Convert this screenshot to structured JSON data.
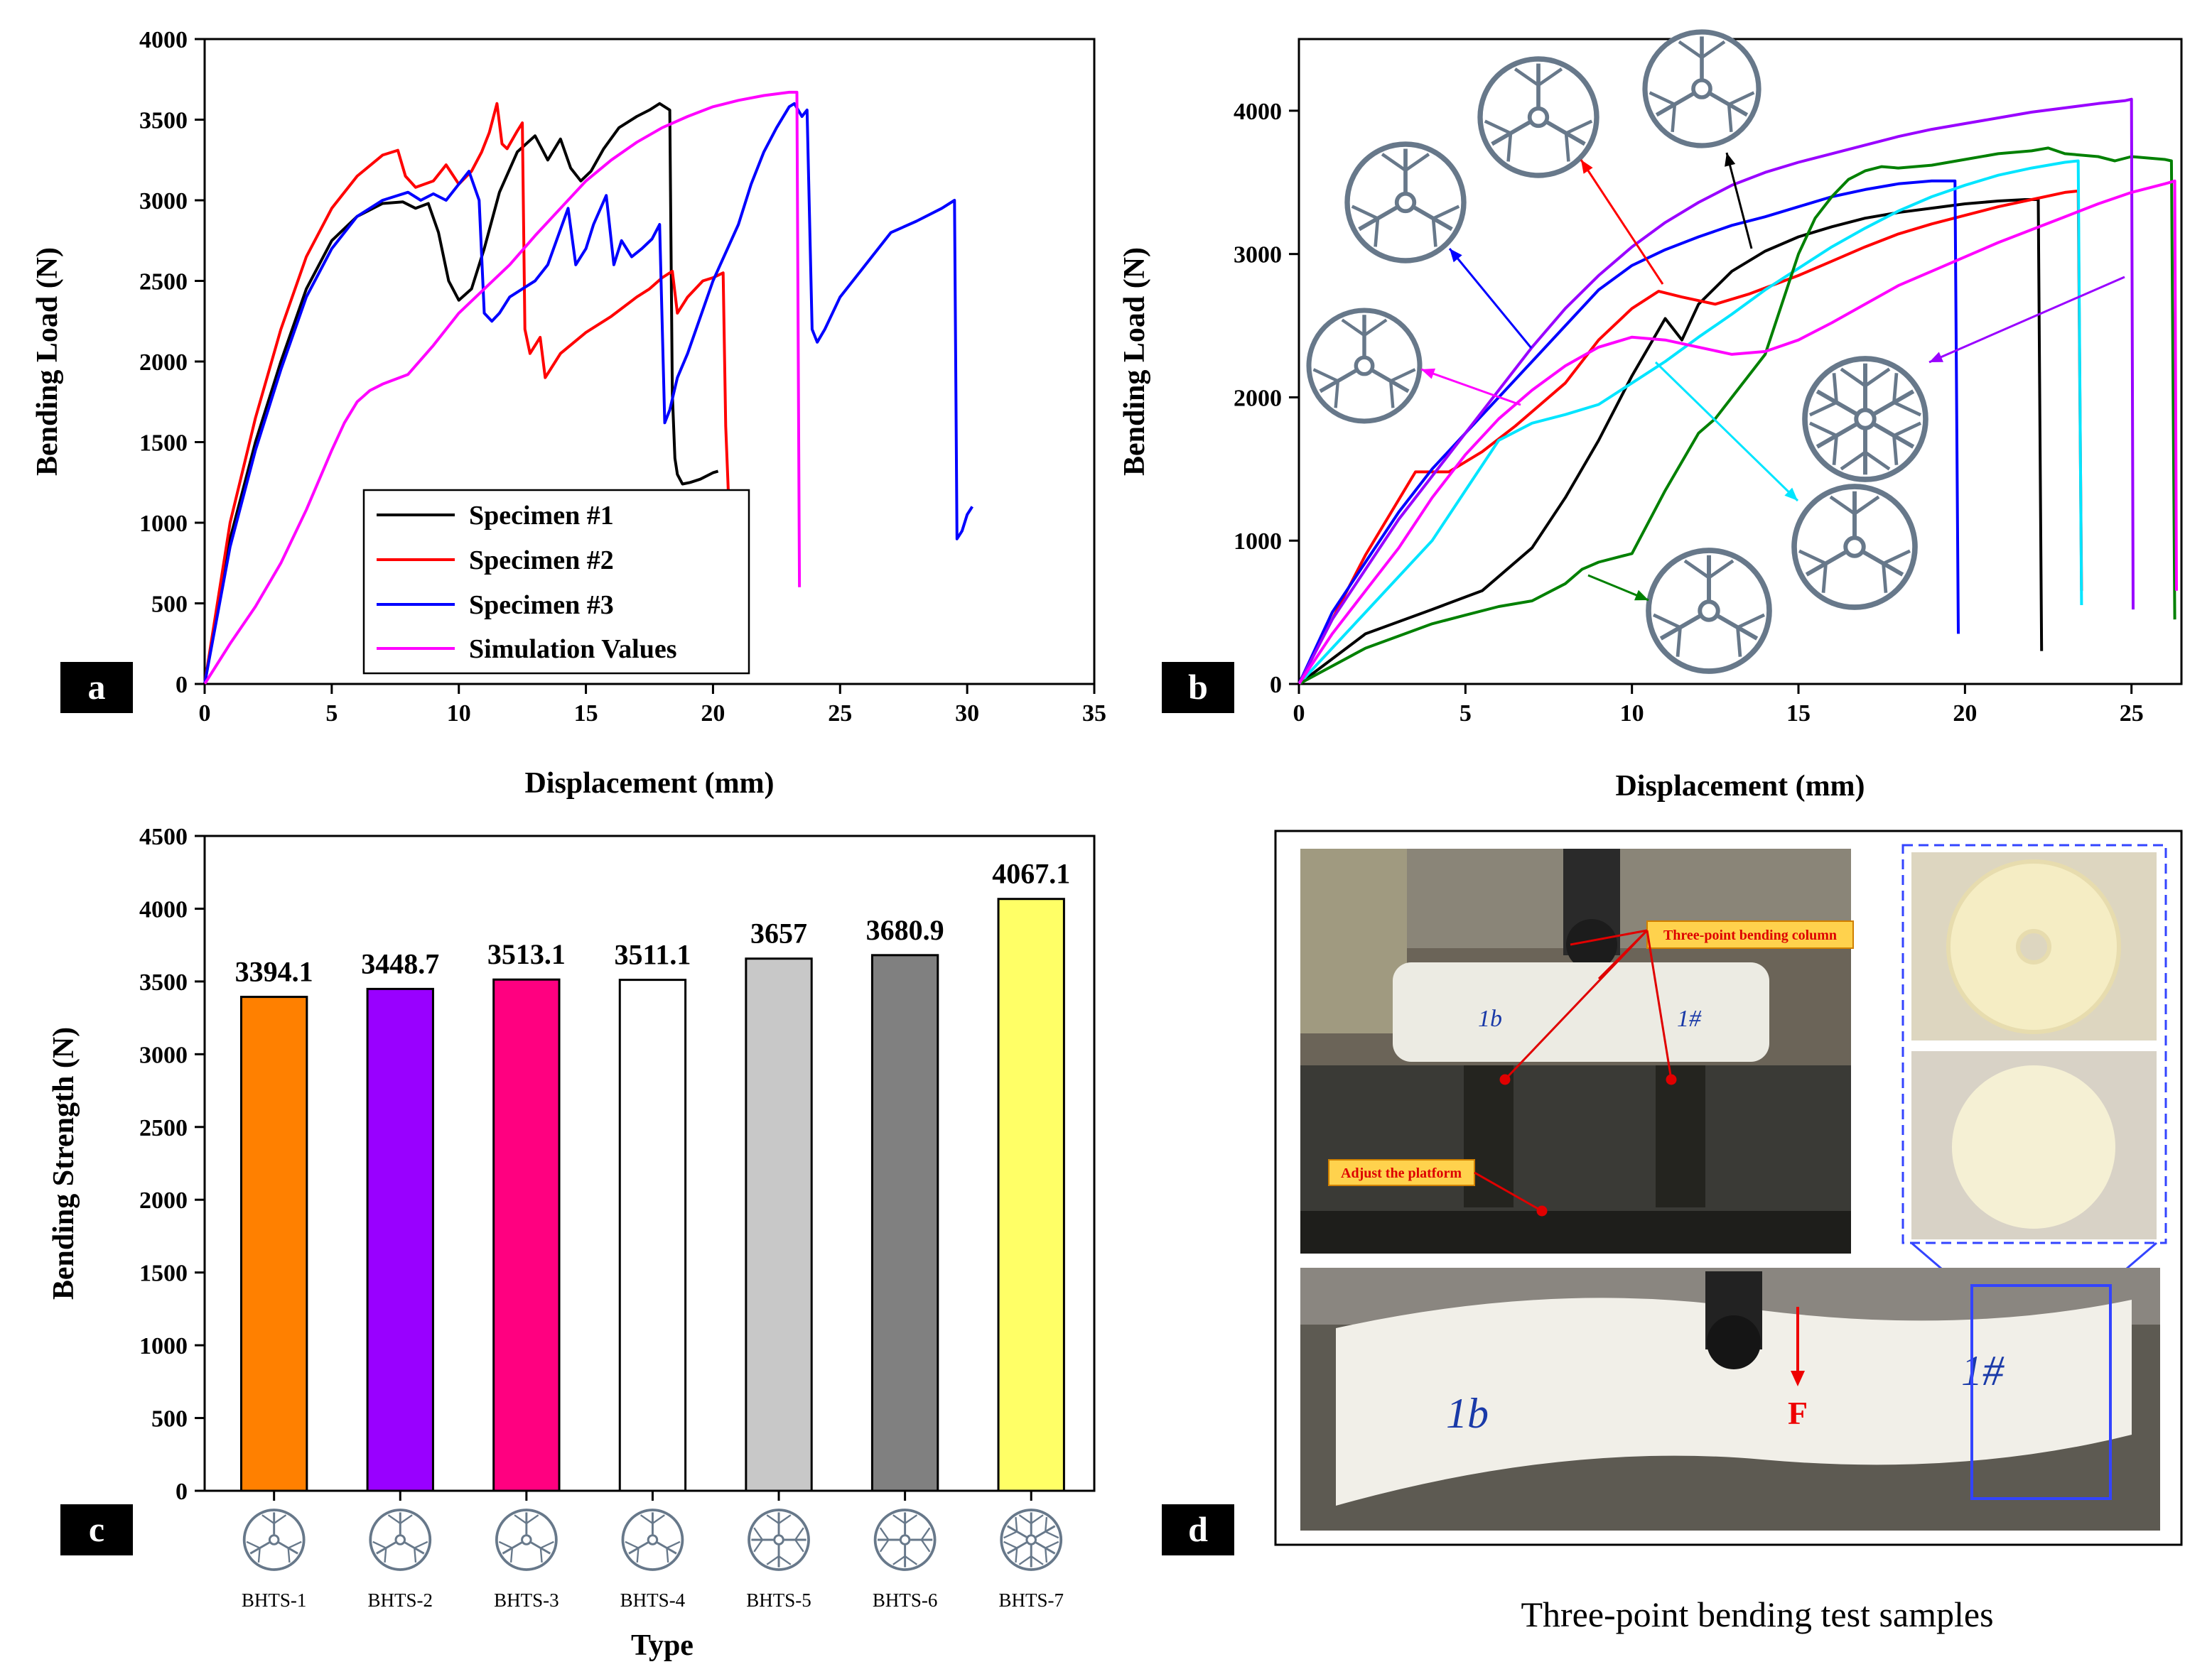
{
  "chart_data": [
    {
      "id": "a",
      "type": "line",
      "panel_label": "a",
      "xlabel": "Displacement (mm)",
      "ylabel": "Bending Load (N)",
      "xlim": [
        0,
        35
      ],
      "ylim": [
        0,
        4000
      ],
      "xticks": [
        0,
        5,
        10,
        15,
        20,
        25,
        30,
        35
      ],
      "yticks": [
        0,
        500,
        1000,
        1500,
        2000,
        2500,
        3000,
        3500,
        4000
      ],
      "legend_position": "bottom-center",
      "series": [
        {
          "name": "Specimen #1",
          "color": "#000000",
          "x": [
            0,
            1,
            2,
            3,
            4,
            5,
            6,
            7,
            7.8,
            8.3,
            8.8,
            9.2,
            9.6,
            10,
            10.5,
            11,
            11.6,
            12.3,
            13,
            13.5,
            14,
            14.4,
            14.8,
            15.2,
            15.7,
            16.3,
            17,
            17.5,
            17.9,
            18.3,
            18.4,
            18.5,
            18.6,
            18.8,
            19.1,
            19.5,
            20,
            20.2
          ],
          "y": [
            0,
            900,
            1500,
            2000,
            2450,
            2750,
            2900,
            2980,
            2990,
            2950,
            2980,
            2800,
            2500,
            2380,
            2450,
            2700,
            3050,
            3300,
            3400,
            3250,
            3380,
            3200,
            3120,
            3180,
            3320,
            3450,
            3520,
            3560,
            3600,
            3560,
            1800,
            1400,
            1300,
            1240,
            1250,
            1270,
            1310,
            1320
          ]
        },
        {
          "name": "Specimen #2",
          "color": "#ff0000",
          "x": [
            0,
            1,
            2,
            3,
            4,
            5,
            6,
            7,
            7.6,
            7.9,
            8.3,
            9,
            9.5,
            10,
            10.5,
            10.9,
            11.2,
            11.5,
            11.7,
            11.9,
            12.3,
            12.5,
            12.6,
            12.8,
            13.2,
            13.4,
            14,
            15,
            16,
            17,
            17.5,
            18,
            18.4,
            18.6,
            19,
            19.6,
            20,
            20.4,
            20.5,
            20.6
          ],
          "y": [
            0,
            1000,
            1650,
            2200,
            2650,
            2950,
            3150,
            3280,
            3310,
            3150,
            3080,
            3120,
            3220,
            3100,
            3180,
            3300,
            3420,
            3600,
            3350,
            3320,
            3430,
            3480,
            2200,
            2050,
            2150,
            1900,
            2050,
            2180,
            2280,
            2400,
            2450,
            2520,
            2560,
            2300,
            2400,
            2500,
            2520,
            2550,
            1600,
            1200
          ]
        },
        {
          "name": "Specimen #3",
          "color": "#0000ff",
          "x": [
            0,
            1,
            2,
            3,
            4,
            5,
            6,
            7,
            8,
            8.5,
            9,
            9.5,
            10,
            10.4,
            10.8,
            11,
            11.3,
            11.6,
            12,
            12.5,
            13,
            13.5,
            14,
            14.3,
            14.6,
            15,
            15.3,
            15.8,
            16.1,
            16.4,
            16.8,
            17.2,
            17.6,
            17.9,
            18.1,
            18.3,
            18.6,
            19,
            20,
            21,
            21.5,
            22,
            22.5,
            23,
            23.2,
            23.5,
            23.7,
            23.9,
            24.1,
            24.4,
            25,
            26,
            27,
            28,
            29,
            29.5,
            29.6,
            29.8,
            30,
            30.2
          ],
          "y": [
            0,
            850,
            1450,
            1950,
            2400,
            2700,
            2900,
            3000,
            3050,
            3000,
            3040,
            3000,
            3100,
            3180,
            3000,
            2300,
            2250,
            2300,
            2400,
            2450,
            2500,
            2600,
            2820,
            2950,
            2600,
            2700,
            2850,
            3030,
            2600,
            2750,
            2650,
            2700,
            2760,
            2850,
            1620,
            1700,
            1900,
            2050,
            2500,
            2850,
            3100,
            3300,
            3450,
            3580,
            3600,
            3520,
            3560,
            2200,
            2120,
            2200,
            2400,
            2600,
            2800,
            2870,
            2950,
            3000,
            900,
            950,
            1050,
            1100
          ]
        },
        {
          "name": "Simulation Values",
          "color": "#ff00ff",
          "x": [
            0,
            1,
            2,
            3,
            4,
            5,
            5.5,
            6,
            6.5,
            7,
            8,
            9,
            10,
            11,
            12,
            13,
            14,
            15,
            16,
            17,
            18,
            19,
            20,
            21,
            22,
            23,
            23.3,
            23.4
          ],
          "y": [
            0,
            250,
            480,
            750,
            1080,
            1450,
            1620,
            1750,
            1820,
            1860,
            1920,
            2100,
            2300,
            2450,
            2600,
            2780,
            2950,
            3120,
            3250,
            3360,
            3450,
            3520,
            3580,
            3620,
            3650,
            3670,
            3670,
            600
          ]
        }
      ]
    },
    {
      "id": "b",
      "type": "line",
      "panel_label": "b",
      "xlabel": "Displacement (mm)",
      "ylabel": "Bending Load (N)",
      "xlim": [
        0,
        26.5
      ],
      "ylim": [
        0,
        4500
      ],
      "xticks": [
        0,
        5,
        10,
        15,
        20,
        25
      ],
      "yticks": [
        0,
        1000,
        2000,
        3000,
        4000
      ],
      "series": [
        {
          "name": "black",
          "color": "#000000",
          "x": [
            0,
            2,
            4,
            5.5,
            7,
            8,
            9,
            10,
            11,
            11.5,
            12,
            13,
            14,
            15,
            16,
            17,
            18,
            19,
            20,
            21,
            21.8,
            22.2,
            22.3
          ],
          "y": [
            0,
            350,
            520,
            650,
            950,
            1300,
            1700,
            2150,
            2550,
            2400,
            2650,
            2880,
            3020,
            3120,
            3190,
            3250,
            3290,
            3320,
            3350,
            3370,
            3380,
            3380,
            230
          ]
        },
        {
          "name": "red",
          "color": "#ff0000",
          "x": [
            0,
            2,
            3.5,
            4.5,
            5.5,
            6.5,
            8,
            9,
            10,
            10.8,
            11.5,
            12.5,
            13.5,
            15,
            16,
            17,
            18,
            19,
            20,
            21,
            22,
            23,
            23.4,
            23.5
          ],
          "y": [
            0,
            900,
            1480,
            1480,
            1620,
            1800,
            2100,
            2400,
            2620,
            2740,
            2700,
            2650,
            2720,
            2850,
            2950,
            3050,
            3140,
            3210,
            3270,
            3330,
            3380,
            3430,
            3440,
            650
          ]
        },
        {
          "name": "blue",
          "color": "#0000ff",
          "x": [
            0,
            1,
            2,
            3,
            4,
            5,
            6,
            7,
            8,
            9,
            10,
            11,
            12,
            13,
            14,
            15,
            16,
            17,
            18,
            19,
            19.7,
            19.8
          ],
          "y": [
            0,
            500,
            850,
            1200,
            1500,
            1750,
            2000,
            2250,
            2500,
            2750,
            2920,
            3030,
            3120,
            3200,
            3260,
            3330,
            3400,
            3450,
            3490,
            3510,
            3510,
            350
          ]
        },
        {
          "name": "cyan",
          "color": "#00e5ff",
          "x": [
            0,
            2,
            4,
            5,
            6,
            7,
            8,
            9,
            10,
            11,
            12,
            13,
            14,
            15,
            16,
            17,
            18,
            19,
            20,
            21,
            22,
            23,
            23.4,
            23.5
          ],
          "y": [
            0,
            500,
            1000,
            1350,
            1700,
            1820,
            1880,
            1950,
            2100,
            2250,
            2420,
            2580,
            2750,
            2900,
            3050,
            3180,
            3300,
            3400,
            3480,
            3550,
            3600,
            3640,
            3650,
            550
          ]
        },
        {
          "name": "green",
          "color": "#008000",
          "x": [
            0,
            2,
            4,
            5,
            6,
            7,
            8,
            8.5,
            9,
            9.5,
            10,
            11,
            12,
            12.5,
            13,
            14,
            14.5,
            15,
            15.5,
            16,
            16.5,
            17,
            17.5,
            18,
            19,
            20,
            21,
            22,
            22.5,
            23,
            24,
            24.5,
            25,
            25.5,
            26,
            26.2,
            26.3
          ],
          "y": [
            0,
            250,
            420,
            480,
            540,
            580,
            700,
            800,
            850,
            880,
            910,
            1350,
            1750,
            1850,
            2000,
            2300,
            2650,
            3000,
            3250,
            3400,
            3520,
            3580,
            3610,
            3600,
            3620,
            3660,
            3700,
            3720,
            3740,
            3700,
            3680,
            3650,
            3680,
            3670,
            3660,
            3650,
            450
          ]
        },
        {
          "name": "purple",
          "color": "#9900ff",
          "x": [
            0,
            1,
            2,
            3,
            4,
            5,
            6,
            7,
            8,
            9,
            10,
            11,
            12,
            13,
            14,
            15,
            16,
            17,
            18,
            19,
            20,
            21,
            22,
            23,
            24,
            24.8,
            25,
            25.05
          ],
          "y": [
            0,
            450,
            800,
            1150,
            1450,
            1750,
            2050,
            2350,
            2620,
            2850,
            3050,
            3220,
            3360,
            3480,
            3570,
            3640,
            3700,
            3760,
            3820,
            3870,
            3910,
            3950,
            3990,
            4020,
            4050,
            4070,
            4080,
            520
          ]
        },
        {
          "name": "magenta",
          "color": "#ff00ff",
          "x": [
            0,
            1,
            2,
            3,
            4,
            5,
            6,
            7,
            8,
            9,
            10,
            11,
            12,
            13,
            14,
            15,
            16,
            17,
            18,
            19,
            20,
            21,
            22,
            23,
            24,
            25,
            26,
            26.3,
            26.35
          ],
          "y": [
            0,
            350,
            650,
            950,
            1300,
            1600,
            1850,
            2050,
            2220,
            2350,
            2420,
            2400,
            2350,
            2300,
            2320,
            2400,
            2520,
            2650,
            2780,
            2880,
            2980,
            3080,
            3170,
            3260,
            3350,
            3430,
            3490,
            3510,
            650
          ]
        }
      ]
    },
    {
      "id": "c",
      "type": "bar",
      "panel_label": "c",
      "xlabel": "Type",
      "ylabel": "Bending Strength (N)",
      "ylim": [
        0,
        4500
      ],
      "yticks": [
        0,
        500,
        1000,
        1500,
        2000,
        2500,
        3000,
        3500,
        4000,
        4500
      ],
      "categories": [
        "BHTS-1",
        "BHTS-2",
        "BHTS-3",
        "BHTS-4",
        "BHTS-5",
        "BHTS-6",
        "BHTS-7"
      ],
      "values": [
        3394.1,
        3448.7,
        3513.1,
        3511.1,
        3657,
        3680.9,
        4067.1
      ],
      "value_labels": [
        "3394.1",
        "3448.7",
        "3513.1",
        "3511.1",
        "3657",
        "3680.9",
        "4067.1"
      ],
      "colors": [
        "#ff8000",
        "#9900ff",
        "#ff0080",
        "#ffffff",
        "#c8c8c8",
        "#808080",
        "#ffff66"
      ]
    }
  ],
  "panel_d": {
    "label": "d",
    "caption": "Three-point bending test samples",
    "annotations": {
      "column": "Three-point bending column",
      "platform": "Adjust the platform",
      "force": "F",
      "mark_1": "1#",
      "mark_2": "1b"
    }
  }
}
